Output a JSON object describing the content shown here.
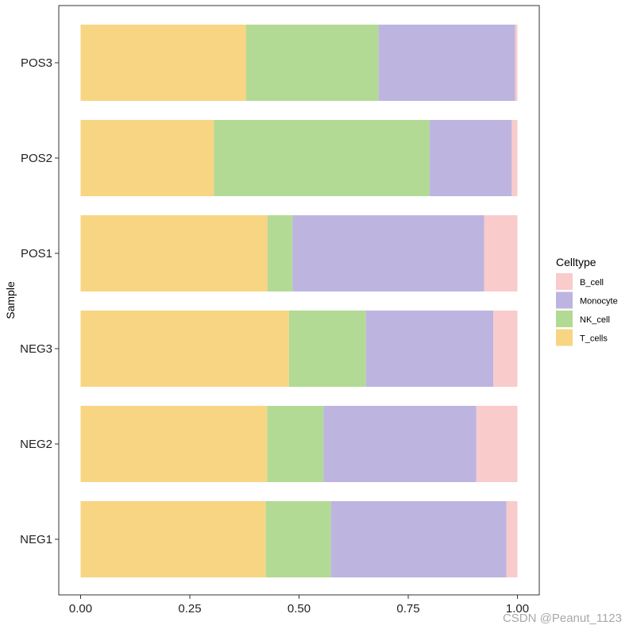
{
  "chart_data": {
    "type": "bar",
    "orientation": "horizontal",
    "stacked": true,
    "title": "",
    "ylabel": "Sample",
    "xlabel": "",
    "xlim": [
      0,
      1
    ],
    "xticks": [
      "0.00",
      "0.25",
      "0.50",
      "0.75",
      "1.00"
    ],
    "xtick_values": [
      0,
      0.25,
      0.5,
      0.75,
      1.0
    ],
    "categories": [
      "NEG1",
      "NEG2",
      "NEG3",
      "POS1",
      "POS2",
      "POS3"
    ],
    "series": [
      {
        "name": "T_cells",
        "color": "#F7D582",
        "values": [
          0.424,
          0.427,
          0.477,
          0.428,
          0.305,
          0.379
        ]
      },
      {
        "name": "NK_cell",
        "color": "#B2DA95",
        "values": [
          0.149,
          0.129,
          0.176,
          0.057,
          0.494,
          0.303
        ]
      },
      {
        "name": "Monocyte",
        "color": "#BDB5E0",
        "values": [
          0.402,
          0.35,
          0.292,
          0.439,
          0.188,
          0.313
        ]
      },
      {
        "name": "B_cell",
        "color": "#F9CBCB",
        "values": [
          0.025,
          0.094,
          0.055,
          0.076,
          0.013,
          0.005
        ]
      }
    ],
    "legend": {
      "title": "Celltype",
      "position": "right",
      "entries": [
        "B_cell",
        "Monocyte",
        "NK_cell",
        "T_cells"
      ]
    },
    "grid": false
  },
  "watermark": "CSDN @Peanut_1123"
}
